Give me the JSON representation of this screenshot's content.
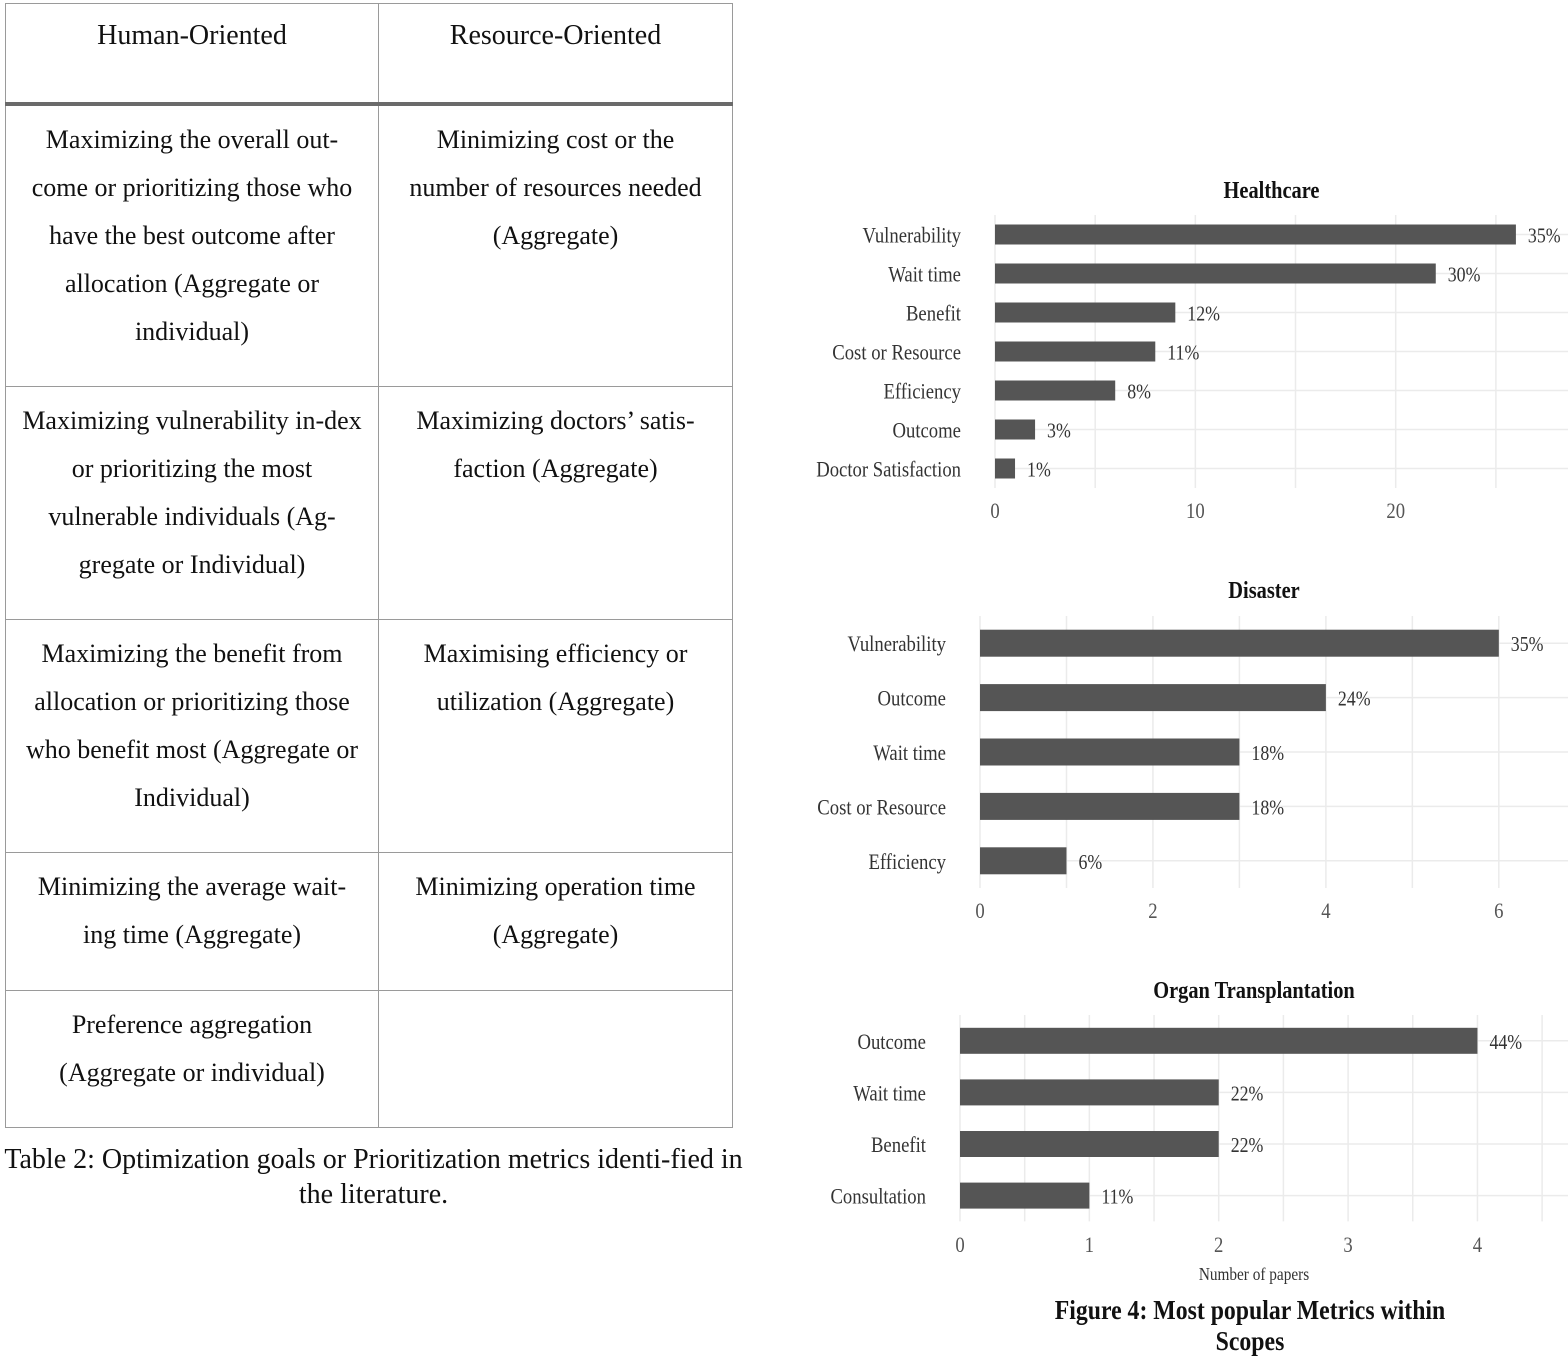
{
  "table": {
    "headers": [
      "Human-Oriented",
      "Resource-Oriented"
    ],
    "rows": [
      [
        "Maximizing the overall out-come or prioritizing those who have the best outcome after allocation (Aggregate or individual)",
        "Minimizing cost or the number of resources needed (Aggregate)"
      ],
      [
        "Maximizing vulnerability in-dex or prioritizing the most vulnerable individuals (Ag-gregate or Individual)",
        "Maximizing doctors’ satis-faction (Aggregate)"
      ],
      [
        "Maximizing the benefit from allocation or prioritizing those who benefit most (Aggregate or Individual)",
        "Maximising efficiency or utilization (Aggregate)"
      ],
      [
        "Minimizing the average wait-ing time (Aggregate)",
        "Minimizing operation time (Aggregate)"
      ],
      [
        "Preference aggregation (Aggregate or individual)",
        ""
      ]
    ],
    "caption": "Table 2: Optimization goals or Prioritization metrics identi-fied in the literature."
  },
  "figure_caption": "Figure 4: Most popular Metrics within Scopes",
  "colors": {
    "bar": "#555555",
    "grid": "#ebebeb"
  },
  "chart_data": [
    {
      "type": "bar",
      "orientation": "horizontal",
      "title": "Healthcare",
      "categories": [
        "Vulnerability",
        "Wait time",
        "Benefit",
        "Cost or Resource",
        "Efficiency",
        "Outcome",
        "Doctor Satisfaction"
      ],
      "values": [
        26,
        22,
        9,
        8,
        6,
        2,
        1
      ],
      "labels": [
        "35%",
        "30%",
        "12%",
        "11%",
        "8%",
        "3%",
        "1%"
      ],
      "xticks": [
        0,
        10,
        20
      ],
      "xlim": [
        0,
        28.6
      ],
      "xlabel": "",
      "grid": true
    },
    {
      "type": "bar",
      "orientation": "horizontal",
      "title": "Disaster",
      "categories": [
        "Vulnerability",
        "Outcome",
        "Wait time",
        "Cost or Resource",
        "Efficiency"
      ],
      "values": [
        6,
        4,
        3,
        3,
        1
      ],
      "labels": [
        "35%",
        "24%",
        "18%",
        "18%",
        "6%"
      ],
      "xticks": [
        0,
        2,
        4,
        6
      ],
      "xlim": [
        0,
        6.8
      ],
      "xlabel": "",
      "grid": true
    },
    {
      "type": "bar",
      "orientation": "horizontal",
      "title": "Organ Transplantation",
      "categories": [
        "Outcome",
        "Wait time",
        "Benefit",
        "Consultation"
      ],
      "values": [
        4,
        2,
        2,
        1
      ],
      "labels": [
        "44%",
        "22%",
        "22%",
        "11%"
      ],
      "xticks": [
        0,
        1,
        2,
        3,
        4
      ],
      "xlim": [
        0,
        4.7
      ],
      "xlabel": "Number of papers",
      "grid": true
    }
  ]
}
